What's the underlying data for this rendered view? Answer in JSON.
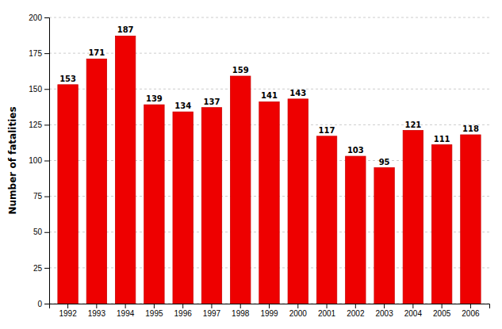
{
  "chart_data": {
    "type": "bar",
    "categories": [
      "1992",
      "1993",
      "1994",
      "1995",
      "1996",
      "1997",
      "1998",
      "1999",
      "2000",
      "2001",
      "2002",
      "2003",
      "2004",
      "2005",
      "2006"
    ],
    "values": [
      153,
      171,
      187,
      139,
      134,
      137,
      159,
      141,
      143,
      117,
      103,
      95,
      121,
      111,
      118
    ],
    "color": "#ee0000",
    "ylabel": "Number of fatalities",
    "ylim": [
      0,
      200
    ],
    "yticks": [
      0,
      25,
      50,
      75,
      100,
      125,
      150,
      175,
      200
    ],
    "grid": true,
    "data_labels": true
  }
}
